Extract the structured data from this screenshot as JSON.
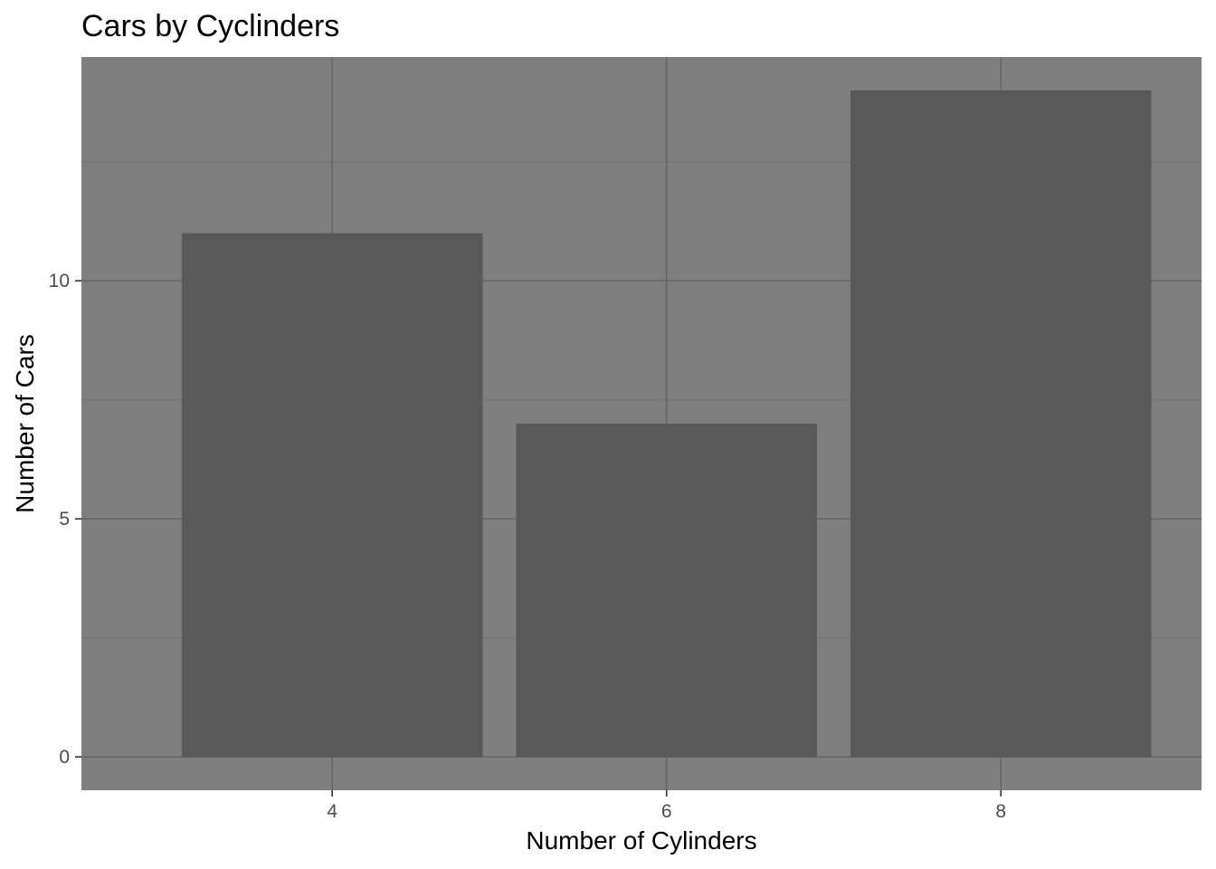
{
  "chart_data": {
    "type": "bar",
    "title": "Cars by Cyclinders",
    "xlabel": "Number of Cylinders",
    "ylabel": "Number of Cars",
    "categories": [
      4,
      6,
      8
    ],
    "values": [
      11,
      7,
      14
    ],
    "xlim": [
      2.5,
      9.2
    ],
    "ylim": [
      -0.7,
      14.7
    ],
    "x_ticks": [
      4,
      6,
      8
    ],
    "y_ticks": [
      0,
      5,
      10
    ],
    "y_minor_ticks": [
      2.5,
      7.5,
      12.5
    ],
    "bar_width": 1.8,
    "grid": true,
    "legend": "none",
    "colors": {
      "panel_background": "#7f7f7f",
      "bar_fill": "#595959",
      "grid_major": "#666666",
      "grid_minor": "#737373",
      "tick_label": "#4d4d4d"
    }
  }
}
